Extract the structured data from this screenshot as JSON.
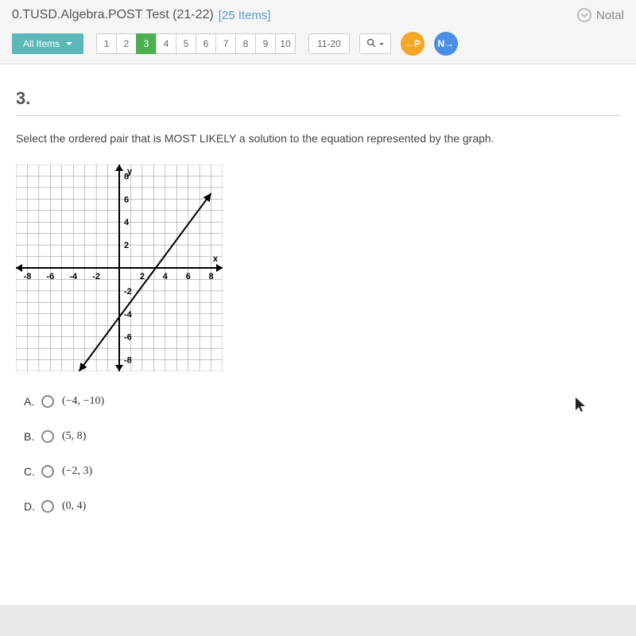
{
  "header": {
    "title": "0.TUSD.Algebra.POST Test (21-22)",
    "items_label": "[25 Items]",
    "notab_label": "Notal"
  },
  "nav": {
    "all_items_label": "All Items",
    "item_buttons": [
      "1",
      "2",
      "3",
      "4",
      "5",
      "6",
      "7",
      "8",
      "9",
      "10"
    ],
    "active_index": 2,
    "range_label": "11-20",
    "search_icon": "🔍",
    "prev_label": "←P",
    "next_label": "N→"
  },
  "question": {
    "number": "3.",
    "text": "Select the ordered pair that is MOST LIKELY a solution to the equation represented by the graph.",
    "answers": [
      {
        "letter": "A.",
        "text": "(−4, −10)"
      },
      {
        "letter": "B.",
        "text": "(5, 8)"
      },
      {
        "letter": "C.",
        "text": "(−2, 3)"
      },
      {
        "letter": "D.",
        "text": "(0, 4)"
      }
    ]
  },
  "graph": {
    "type": "line",
    "xlim": [
      -9,
      9
    ],
    "ylim": [
      -9,
      9
    ],
    "xtick_step": 2,
    "ytick_step": 2,
    "x_labels": [
      "-8",
      "-6",
      "-4",
      "-2",
      "2",
      "4",
      "6",
      "8"
    ],
    "y_labels": [
      "8",
      "6",
      "4",
      "2",
      "-2",
      "-4",
      "-6",
      "-8"
    ],
    "x_axis_label": "x",
    "y_axis_label": "y",
    "line_points": [
      [
        -3.5,
        -9
      ],
      [
        8,
        6.5
      ]
    ],
    "grid_color": "#888",
    "axis_color": "#000",
    "line_color": "#000",
    "line_width": 2,
    "label_fontsize": 11,
    "label_weight": "bold",
    "background_color": "#ffffff"
  },
  "colors": {
    "teal": "#5cb8b8",
    "green_active": "#4caf50",
    "orange_nav": "#f5a623",
    "blue_nav": "#4a90e2",
    "link_blue": "#5a9bd5"
  }
}
